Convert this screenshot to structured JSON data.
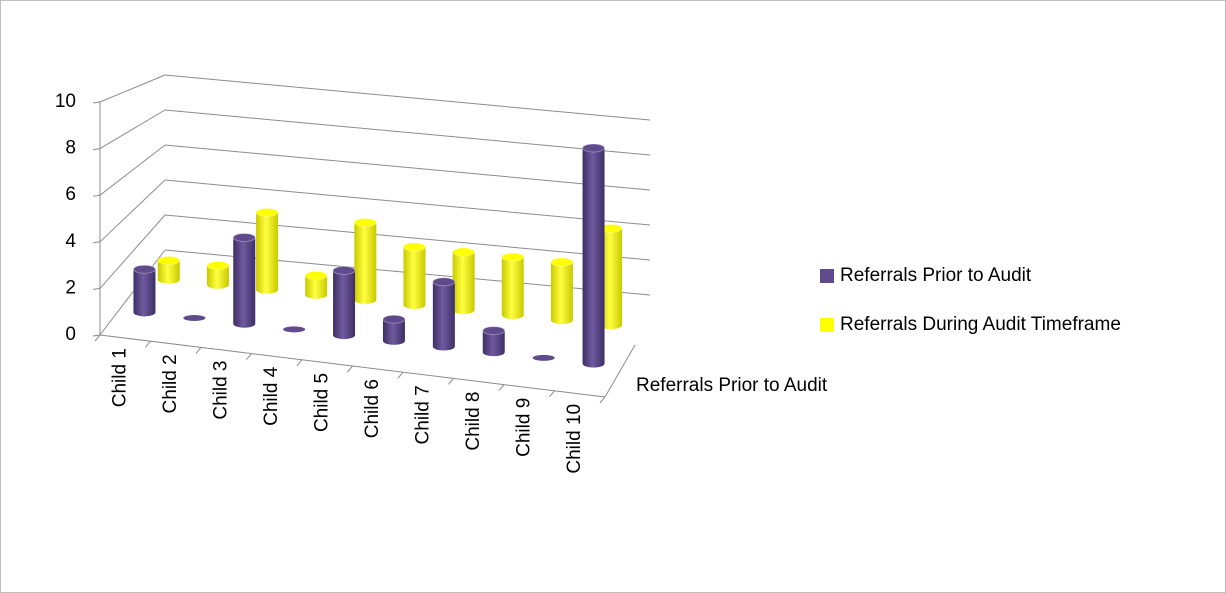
{
  "chart_data": {
    "type": "bar3d",
    "categories": [
      "Child 1",
      "Child 2",
      "Child 3",
      "Child 4",
      "Child 5",
      "Child 6",
      "Child 7",
      "Child 8",
      "Child 9",
      "Child 10"
    ],
    "series": [
      {
        "name": "Referrals Prior to Audit",
        "color": "#5f4b8b",
        "values": [
          2,
          0,
          4,
          0,
          3,
          1,
          3,
          1,
          0,
          10
        ]
      },
      {
        "name": "Referrals During Audit Timeframe",
        "color": "#ffff00",
        "values": [
          1,
          1,
          4,
          1,
          4,
          3,
          3,
          3,
          3,
          5
        ]
      }
    ],
    "zticks": [
      "Referrals Prior to Audit"
    ],
    "ylim": [
      0,
      10
    ],
    "yticks": [
      0,
      2,
      4,
      6,
      8,
      10
    ],
    "grid": true,
    "legend": "right"
  }
}
